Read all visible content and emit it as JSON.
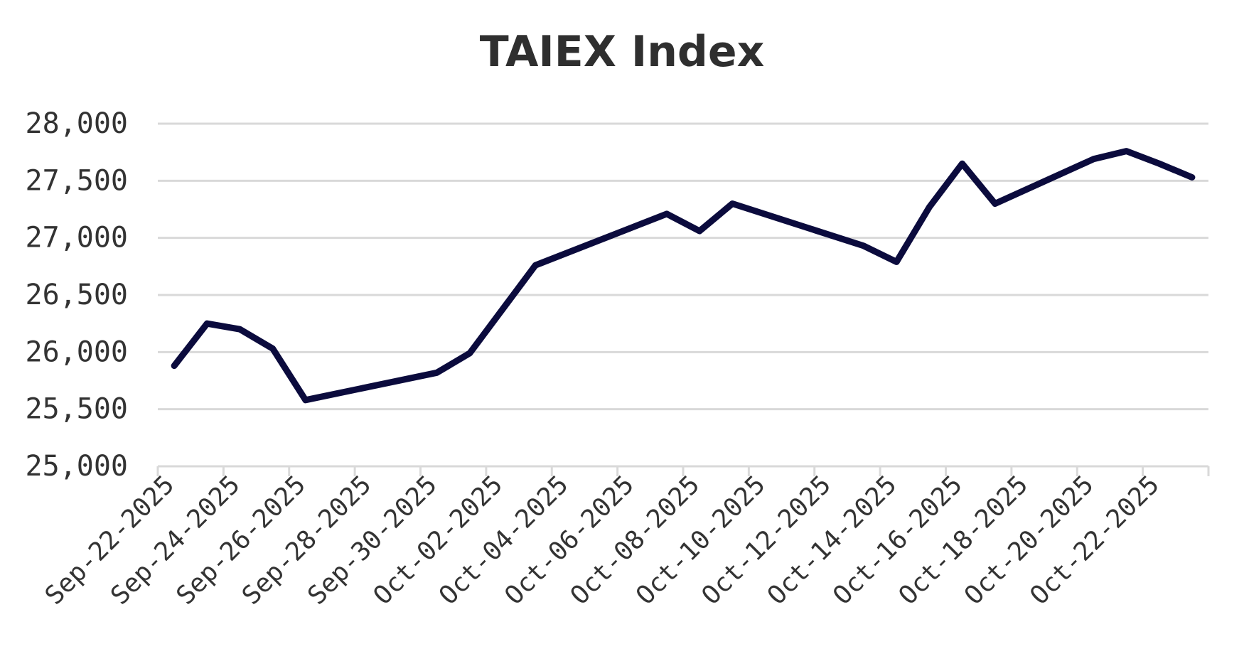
{
  "chart_data": {
    "type": "line",
    "title": "TAIEX Index",
    "xlabel": "",
    "ylabel": "",
    "ylim": [
      25000,
      28000
    ],
    "yticks": [
      25000,
      25500,
      26000,
      26500,
      27000,
      27500,
      28000
    ],
    "ytick_labels": [
      "25,000",
      "25,500",
      "26,000",
      "26,500",
      "27,000",
      "27,500",
      "28,000"
    ],
    "xlim": [
      "2025-09-22",
      "2025-10-23"
    ],
    "xtick_labels": [
      "Sep-22-2025",
      "Sep-24-2025",
      "Sep-26-2025",
      "Sep-28-2025",
      "Sep-30-2025",
      "Oct-02-2025",
      "Oct-04-2025",
      "Oct-06-2025",
      "Oct-08-2025",
      "Oct-10-2025",
      "Oct-12-2025",
      "Oct-14-2025",
      "Oct-16-2025",
      "Oct-18-2025",
      "Oct-20-2025",
      "Oct-22-2025"
    ],
    "xtick_dates": [
      "2025-09-22",
      "2025-09-24",
      "2025-09-26",
      "2025-09-28",
      "2025-09-30",
      "2025-10-02",
      "2025-10-04",
      "2025-10-06",
      "2025-10-08",
      "2025-10-10",
      "2025-10-12",
      "2025-10-14",
      "2025-10-16",
      "2025-10-18",
      "2025-10-20",
      "2025-10-22"
    ],
    "grid": true,
    "line_color": "#0b0b3d",
    "series": [
      {
        "x": [
          "2025-09-22",
          "2025-09-23",
          "2025-09-24",
          "2025-09-25",
          "2025-09-26",
          "2025-09-30",
          "2025-10-01",
          "2025-10-03",
          "2025-10-07",
          "2025-10-08",
          "2025-10-09",
          "2025-10-13",
          "2025-10-14",
          "2025-10-15",
          "2025-10-16",
          "2025-10-17",
          "2025-10-20",
          "2025-10-21",
          "2025-10-22",
          "2025-10-23"
        ],
        "values": [
          25880,
          26250,
          26200,
          26030,
          25580,
          25820,
          25990,
          26760,
          27210,
          27060,
          27300,
          26930,
          26790,
          27270,
          27650,
          27300,
          27690,
          27760,
          27650,
          27530
        ]
      }
    ]
  }
}
